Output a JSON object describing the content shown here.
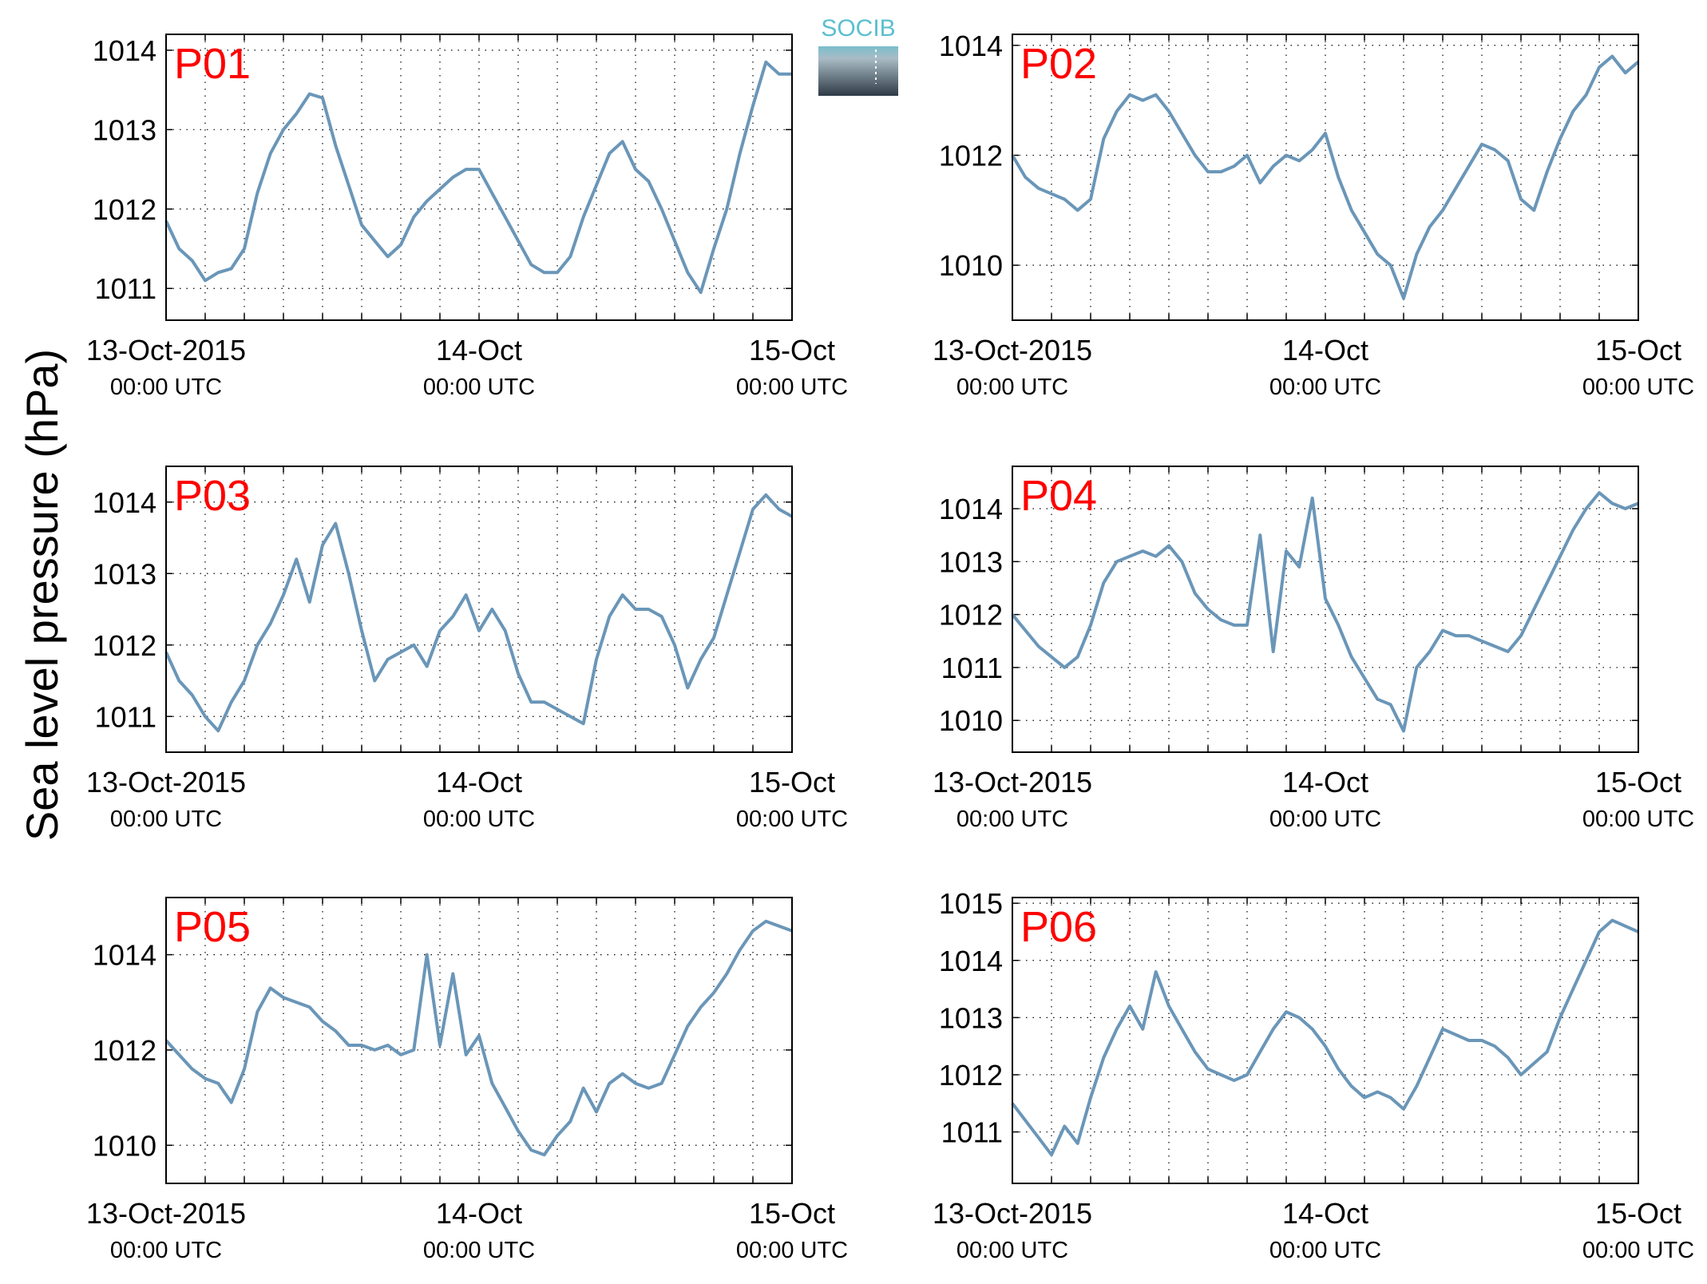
{
  "figure": {
    "ylabel": "Sea level pressure (hPa)",
    "logo": {
      "text": "SOCIB"
    },
    "line_color": "#6a96b8",
    "title_color": "#ff0000"
  },
  "chart_data": [
    {
      "type": "line",
      "title": "P01",
      "xticks": [
        {
          "value": 0,
          "line1": "13-Oct-2015",
          "line2": "00:00 UTC"
        },
        {
          "value": 24,
          "line1": "14-Oct",
          "line2": "00:00 UTC"
        },
        {
          "value": 48,
          "line1": "15-Oct",
          "line2": "00:00 UTC"
        }
      ],
      "xlim": [
        0,
        48
      ],
      "ylim": [
        1010.6,
        1014.2
      ],
      "yticks": [
        1011,
        1012,
        1013,
        1014
      ],
      "grid": true,
      "x": [
        0,
        1,
        2,
        3,
        4,
        5,
        6,
        7,
        8,
        9,
        10,
        11,
        12,
        13,
        14,
        15,
        16,
        17,
        18,
        19,
        20,
        21,
        22,
        23,
        24,
        25,
        26,
        27,
        28,
        29,
        30,
        31,
        32,
        33,
        34,
        35,
        36,
        37,
        38,
        39,
        40,
        41,
        42,
        43,
        44,
        45,
        46,
        47,
        48
      ],
      "series": [
        {
          "values": [
            1011.85,
            1011.5,
            1011.35,
            1011.1,
            1011.2,
            1011.25,
            1011.5,
            1012.2,
            1012.7,
            1013.0,
            1013.2,
            1013.45,
            1013.4,
            1012.8,
            1012.3,
            1011.8,
            1011.6,
            1011.4,
            1011.55,
            1011.9,
            1012.1,
            1012.25,
            1012.4,
            1012.5,
            1012.5,
            1012.2,
            1011.9,
            1011.6,
            1011.3,
            1011.2,
            1011.2,
            1011.4,
            1011.9,
            1012.3,
            1012.7,
            1012.85,
            1012.5,
            1012.35,
            1012.0,
            1011.6,
            1011.2,
            1010.95,
            1011.5,
            1012.0,
            1012.7,
            1013.3,
            1013.85,
            1013.7,
            1013.7
          ]
        }
      ]
    },
    {
      "type": "line",
      "title": "P02",
      "xticks": [
        {
          "value": 0,
          "line1": "13-Oct-2015",
          "line2": "00:00 UTC"
        },
        {
          "value": 24,
          "line1": "14-Oct",
          "line2": "00:00 UTC"
        },
        {
          "value": 48,
          "line1": "15-Oct",
          "line2": "00:00 UTC"
        }
      ],
      "xlim": [
        0,
        48
      ],
      "ylim": [
        1009.0,
        1014.2
      ],
      "yticks": [
        1010,
        1012,
        1014
      ],
      "grid": true,
      "x": [
        0,
        1,
        2,
        3,
        4,
        5,
        6,
        7,
        8,
        9,
        10,
        11,
        12,
        13,
        14,
        15,
        16,
        17,
        18,
        19,
        20,
        21,
        22,
        23,
        24,
        25,
        26,
        27,
        28,
        29,
        30,
        31,
        32,
        33,
        34,
        35,
        36,
        37,
        38,
        39,
        40,
        41,
        42,
        43,
        44,
        45,
        46,
        47,
        48
      ],
      "series": [
        {
          "values": [
            1012.0,
            1011.6,
            1011.4,
            1011.3,
            1011.2,
            1011.0,
            1011.2,
            1012.3,
            1012.8,
            1013.1,
            1013.0,
            1013.1,
            1012.8,
            1012.4,
            1012.0,
            1011.7,
            1011.7,
            1011.8,
            1012.0,
            1011.5,
            1011.8,
            1012.0,
            1011.9,
            1012.1,
            1012.4,
            1011.6,
            1011.0,
            1010.6,
            1010.2,
            1010.0,
            1009.4,
            1010.2,
            1010.7,
            1011.0,
            1011.4,
            1011.8,
            1012.2,
            1012.1,
            1011.9,
            1011.2,
            1011.0,
            1011.7,
            1012.3,
            1012.8,
            1013.1,
            1013.6,
            1013.8,
            1013.5,
            1013.7
          ]
        }
      ]
    },
    {
      "type": "line",
      "title": "P03",
      "xticks": [
        {
          "value": 0,
          "line1": "13-Oct-2015",
          "line2": "00:00 UTC"
        },
        {
          "value": 24,
          "line1": "14-Oct",
          "line2": "00:00 UTC"
        },
        {
          "value": 48,
          "line1": "15-Oct",
          "line2": "00:00 UTC"
        }
      ],
      "xlim": [
        0,
        48
      ],
      "ylim": [
        1010.5,
        1014.5
      ],
      "yticks": [
        1011,
        1012,
        1013,
        1014
      ],
      "grid": true,
      "x": [
        0,
        1,
        2,
        3,
        4,
        5,
        6,
        7,
        8,
        9,
        10,
        11,
        12,
        13,
        14,
        15,
        16,
        17,
        18,
        19,
        20,
        21,
        22,
        23,
        24,
        25,
        26,
        27,
        28,
        29,
        30,
        31,
        32,
        33,
        34,
        35,
        36,
        37,
        38,
        39,
        40,
        41,
        42,
        43,
        44,
        45,
        46,
        47,
        48
      ],
      "series": [
        {
          "values": [
            1011.9,
            1011.5,
            1011.3,
            1011.0,
            1010.8,
            1011.2,
            1011.5,
            1012.0,
            1012.3,
            1012.7,
            1013.2,
            1012.6,
            1013.4,
            1013.7,
            1013.0,
            1012.2,
            1011.5,
            1011.8,
            1011.9,
            1012.0,
            1011.7,
            1012.2,
            1012.4,
            1012.7,
            1012.2,
            1012.5,
            1012.2,
            1011.6,
            1011.2,
            1011.2,
            1011.1,
            1011.0,
            1010.9,
            1011.8,
            1012.4,
            1012.7,
            1012.5,
            1012.5,
            1012.4,
            1012.0,
            1011.4,
            1011.8,
            1012.1,
            1012.7,
            1013.3,
            1013.9,
            1014.1,
            1013.9,
            1013.8
          ]
        }
      ]
    },
    {
      "type": "line",
      "title": "P04",
      "xticks": [
        {
          "value": 0,
          "line1": "13-Oct-2015",
          "line2": "00:00 UTC"
        },
        {
          "value": 24,
          "line1": "14-Oct",
          "line2": "00:00 UTC"
        },
        {
          "value": 48,
          "line1": "15-Oct",
          "line2": "00:00 UTC"
        }
      ],
      "xlim": [
        0,
        48
      ],
      "ylim": [
        1009.4,
        1014.8
      ],
      "yticks": [
        1010,
        1011,
        1012,
        1013,
        1014
      ],
      "grid": true,
      "x": [
        0,
        1,
        2,
        3,
        4,
        5,
        6,
        7,
        8,
        9,
        10,
        11,
        12,
        13,
        14,
        15,
        16,
        17,
        18,
        19,
        20,
        21,
        22,
        23,
        24,
        25,
        26,
        27,
        28,
        29,
        30,
        31,
        32,
        33,
        34,
        35,
        36,
        37,
        38,
        39,
        40,
        41,
        42,
        43,
        44,
        45,
        46,
        47,
        48
      ],
      "series": [
        {
          "values": [
            1012.0,
            1011.7,
            1011.4,
            1011.2,
            1011.0,
            1011.2,
            1011.8,
            1012.6,
            1013.0,
            1013.1,
            1013.2,
            1013.1,
            1013.3,
            1013.0,
            1012.4,
            1012.1,
            1011.9,
            1011.8,
            1011.8,
            1013.5,
            1011.3,
            1013.2,
            1012.9,
            1014.2,
            1012.3,
            1011.8,
            1011.2,
            1010.8,
            1010.4,
            1010.3,
            1009.8,
            1011.0,
            1011.3,
            1011.7,
            1011.6,
            1011.6,
            1011.5,
            1011.4,
            1011.3,
            1011.6,
            1012.1,
            1012.6,
            1013.1,
            1013.6,
            1014.0,
            1014.3,
            1014.1,
            1014.0,
            1014.1
          ]
        }
      ]
    },
    {
      "type": "line",
      "title": "P05",
      "xticks": [
        {
          "value": 0,
          "line1": "13-Oct-2015",
          "line2": "00:00 UTC"
        },
        {
          "value": 24,
          "line1": "14-Oct",
          "line2": "00:00 UTC"
        },
        {
          "value": 48,
          "line1": "15-Oct",
          "line2": "00:00 UTC"
        }
      ],
      "xlim": [
        0,
        48
      ],
      "ylim": [
        1009.2,
        1015.2
      ],
      "yticks": [
        1010,
        1012,
        1014
      ],
      "grid": true,
      "x": [
        0,
        1,
        2,
        3,
        4,
        5,
        6,
        7,
        8,
        9,
        10,
        11,
        12,
        13,
        14,
        15,
        16,
        17,
        18,
        19,
        20,
        21,
        22,
        23,
        24,
        25,
        26,
        27,
        28,
        29,
        30,
        31,
        32,
        33,
        34,
        35,
        36,
        37,
        38,
        39,
        40,
        41,
        42,
        43,
        44,
        45,
        46,
        47,
        48
      ],
      "series": [
        {
          "values": [
            1012.2,
            1011.9,
            1011.6,
            1011.4,
            1011.3,
            1010.9,
            1011.6,
            1012.8,
            1013.3,
            1013.1,
            1013.0,
            1012.9,
            1012.6,
            1012.4,
            1012.1,
            1012.1,
            1012.0,
            1012.1,
            1011.9,
            1012.0,
            1014.0,
            1012.1,
            1013.6,
            1011.9,
            1012.3,
            1011.3,
            1010.8,
            1010.3,
            1009.9,
            1009.8,
            1010.2,
            1010.5,
            1011.2,
            1010.7,
            1011.3,
            1011.5,
            1011.3,
            1011.2,
            1011.3,
            1011.9,
            1012.5,
            1012.9,
            1013.2,
            1013.6,
            1014.1,
            1014.5,
            1014.7,
            1014.6,
            1014.5
          ]
        }
      ]
    },
    {
      "type": "line",
      "title": "P06",
      "xticks": [
        {
          "value": 0,
          "line1": "13-Oct-2015",
          "line2": "00:00 UTC"
        },
        {
          "value": 24,
          "line1": "14-Oct",
          "line2": "00:00 UTC"
        },
        {
          "value": 48,
          "line1": "15-Oct",
          "line2": "00:00 UTC"
        }
      ],
      "xlim": [
        0,
        48
      ],
      "ylim": [
        1010.1,
        1015.1
      ],
      "yticks": [
        1011,
        1012,
        1013,
        1014,
        1015
      ],
      "grid": true,
      "x": [
        0,
        1,
        2,
        3,
        4,
        5,
        6,
        7,
        8,
        9,
        10,
        11,
        12,
        13,
        14,
        15,
        16,
        17,
        18,
        19,
        20,
        21,
        22,
        23,
        24,
        25,
        26,
        27,
        28,
        29,
        30,
        31,
        32,
        33,
        34,
        35,
        36,
        37,
        38,
        39,
        40,
        41,
        42,
        43,
        44,
        45,
        46,
        47,
        48
      ],
      "series": [
        {
          "values": [
            1011.5,
            1011.2,
            1010.9,
            1010.6,
            1011.1,
            1010.8,
            1011.6,
            1012.3,
            1012.8,
            1013.2,
            1012.8,
            1013.8,
            1013.2,
            1012.8,
            1012.4,
            1012.1,
            1012.0,
            1011.9,
            1012.0,
            1012.4,
            1012.8,
            1013.1,
            1013.0,
            1012.8,
            1012.5,
            1012.1,
            1011.8,
            1011.6,
            1011.7,
            1011.6,
            1011.4,
            1011.8,
            1012.3,
            1012.8,
            1012.7,
            1012.6,
            1012.6,
            1012.5,
            1012.3,
            1012.0,
            1012.2,
            1012.4,
            1013.0,
            1013.5,
            1014.0,
            1014.5,
            1014.7,
            1014.6,
            1014.5
          ]
        }
      ]
    }
  ]
}
